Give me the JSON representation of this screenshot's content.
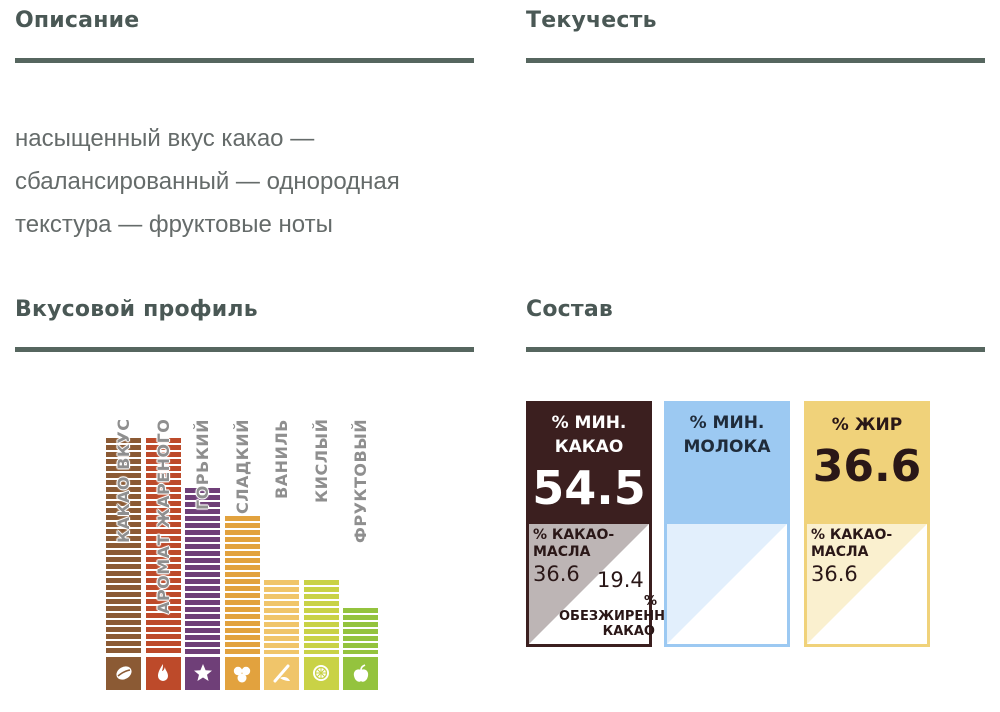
{
  "sections": {
    "description": {
      "title": "Описание",
      "text": "насыщенный вкус какао — сбалансированный — однородная текстура — фруктовые ноты"
    },
    "fluidity": {
      "title": "Текучесть"
    },
    "flavor_profile": {
      "title": "Вкусовой профиль"
    },
    "composition": {
      "title": "Состав"
    }
  },
  "flavor_profile": {
    "scale_max": 5,
    "attributes": [
      {
        "label": "КАКАО ВКУС",
        "level": 4.7,
        "color": "#8b5a34",
        "icon": "cocoa-bean-icon"
      },
      {
        "label": "АРОМАТ ЖАРЕНОГО",
        "level": 4.7,
        "color": "#bd4a2a",
        "icon": "flame-icon"
      },
      {
        "label": "ГОРЬКИЙ",
        "level": 3.6,
        "color": "#6f3f78",
        "icon": "star-icon"
      },
      {
        "label": "СЛАДКИЙ",
        "level": 3.0,
        "color": "#e2a23e",
        "icon": "sugar-cubes-icon"
      },
      {
        "label": "ВАНИЛЬ",
        "level": 1.6,
        "color": "#f0c56a",
        "icon": "vanilla-icon"
      },
      {
        "label": "КИСЛЫЙ",
        "level": 1.6,
        "color": "#c9d246",
        "icon": "lemon-icon"
      },
      {
        "label": "ФРУКТОВЫЙ",
        "level": 1.0,
        "color": "#94c33e",
        "icon": "apple-icon"
      }
    ]
  },
  "composition": {
    "cocoa": {
      "title_line1": "% МИН.",
      "title_line2": "КАКАО",
      "value": "54.5",
      "butter_label_line1": "% КАКАО-",
      "butter_label_line2": "МАСЛА",
      "butter_value": "36.6",
      "fatfree_value": "19.4",
      "fatfree_label_line1": "%",
      "fatfree_label_line2": "ОБЕЗЖИРЕННОЕ",
      "fatfree_label_line3": "КАКАО",
      "color": "#3b1f1f",
      "lower_fill": "#bdb5b5"
    },
    "milk": {
      "title_line1": "% МИН.",
      "title_line2": "МОЛОКА",
      "color": "#9cc9f2",
      "lower_fill": "#e2effc"
    },
    "fat": {
      "title": "% ЖИР",
      "value": "36.6",
      "butter_label_line1": "% КАКАО-",
      "butter_label_line2": "МАСЛА",
      "butter_value": "36.6",
      "color": "#f0d27a",
      "lower_fill": "#faf0cf"
    }
  }
}
